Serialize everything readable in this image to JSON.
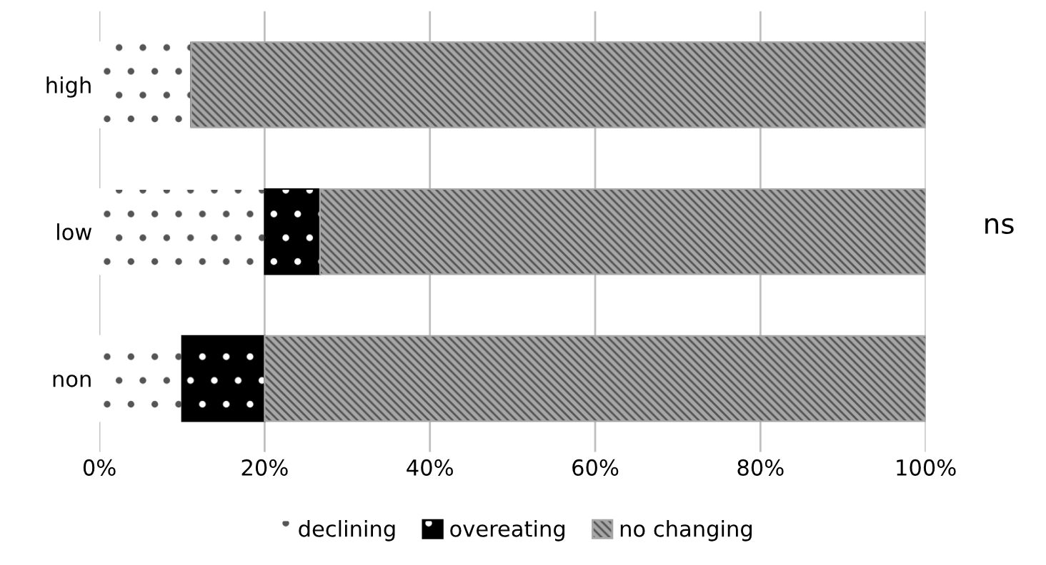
{
  "chart_data": {
    "type": "bar",
    "orientation": "horizontal",
    "stacked": true,
    "categories": [
      "high",
      "low",
      "non"
    ],
    "series": [
      {
        "name": "declining",
        "color": "#ffffff",
        "values": [
          11.1,
          20,
          10
        ]
      },
      {
        "name": "overeating",
        "color": "#000000",
        "values": [
          0,
          6.7,
          10
        ]
      },
      {
        "name": "no changing",
        "color": "#a6a6a6",
        "values": [
          88.9,
          73.3,
          80
        ]
      }
    ],
    "xlim": [
      0,
      100
    ],
    "xticks": [
      {
        "value": 0,
        "label": "0%"
      },
      {
        "value": 20,
        "label": "20%"
      },
      {
        "value": 40,
        "label": "40%"
      },
      {
        "value": 60,
        "label": "60%"
      },
      {
        "value": 80,
        "label": "80%"
      },
      {
        "value": 100,
        "label": "100%"
      }
    ],
    "grid": "x",
    "legend": "bottom",
    "annotations": [
      "ns"
    ]
  }
}
